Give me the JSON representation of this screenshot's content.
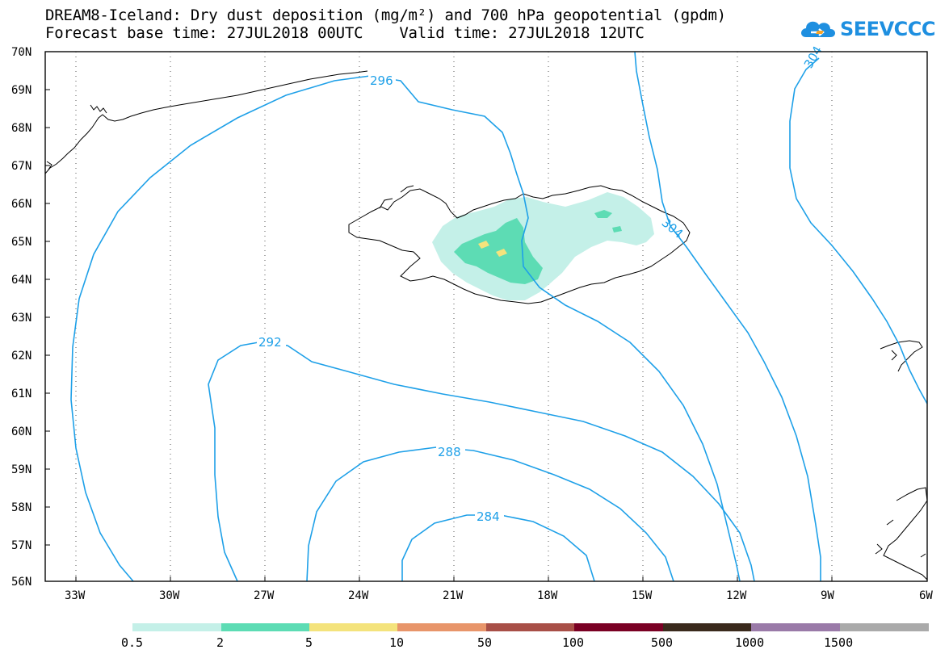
{
  "header": {
    "title_line1": "DREAM8-Iceland: Dry dust deposition (mg/m²) and 700 hPa geopotential (gpdm)",
    "title_line2": "Forecast base time: 27JUL2018 00UTC    Valid time: 27JUL2018 12UTC",
    "logo_text": "SEEVCCC",
    "logo_color": "#1e8fe0"
  },
  "map": {
    "lat_labels": [
      "70N",
      "69N",
      "68N",
      "67N",
      "66N",
      "65N",
      "64N",
      "63N",
      "62N",
      "61N",
      "60N",
      "59N",
      "58N",
      "57N",
      "56N"
    ],
    "lon_labels": [
      "33W",
      "30W",
      "27W",
      "24W",
      "21W",
      "18W",
      "15W",
      "12W",
      "9W",
      "6W"
    ],
    "contour_labels": [
      "296",
      "304",
      "304",
      "292",
      "288",
      "284"
    ],
    "contour_color": "#1ea0e8"
  },
  "legend": {
    "colors": [
      "#c4f0e8",
      "#5ddcb4",
      "#f4e37c",
      "#e8956a",
      "#a84f47",
      "#7a0024",
      "#3a2a1c",
      "#9a7aa8",
      "#aaaaaa"
    ],
    "labels": [
      "0.5",
      "2",
      "5",
      "10",
      "50",
      "100",
      "500",
      "1000",
      "1500"
    ]
  }
}
